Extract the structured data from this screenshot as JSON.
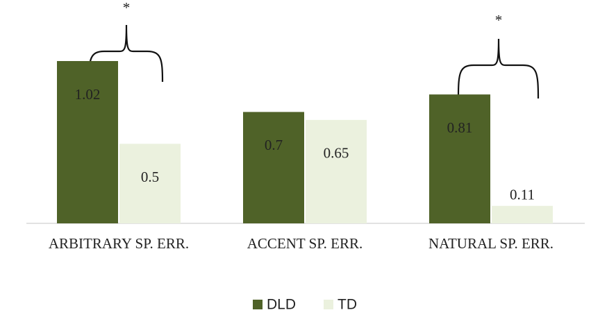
{
  "chart_data": {
    "type": "bar",
    "categories": [
      "ARBITRARY SP. ERR.",
      "ACCENT SP. ERR.",
      "NATURAL SP. ERR."
    ],
    "series": [
      {
        "name": "DLD",
        "color": "#4f6228",
        "values": [
          1.02,
          0.7,
          0.81
        ]
      },
      {
        "name": "TD",
        "color": "#ebf1de",
        "values": [
          0.5,
          0.65,
          0.11
        ]
      }
    ],
    "annotations": [
      "*",
      "*"
    ],
    "legend": "bottom"
  }
}
